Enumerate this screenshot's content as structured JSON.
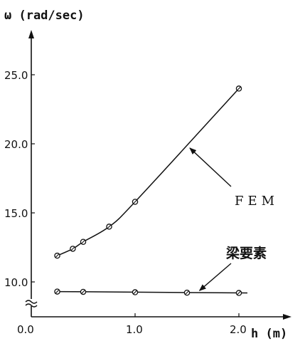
{
  "chart_data": {
    "type": "line",
    "title": "",
    "xlabel": "h (m)",
    "ylabel": "ω (rad/sec)",
    "xlim": [
      0.0,
      2.2
    ],
    "ylim": [
      8.5,
      27.0
    ],
    "x_ticks": [
      "0.0",
      "1.0",
      "2.0"
    ],
    "y_ticks": [
      "10.0",
      "15.0",
      "20.0",
      "25.0"
    ],
    "y_axis_break": true,
    "grid": false,
    "series": [
      {
        "name": "FEM",
        "marker": "circle-slash",
        "x": [
          0.25,
          0.4,
          0.5,
          0.75,
          1.0,
          2.0
        ],
        "y": [
          11.9,
          12.4,
          12.9,
          14.0,
          15.8,
          24.0
        ]
      },
      {
        "name": "梁要素",
        "marker": "circle-slash",
        "x": [
          0.25,
          0.5,
          1.0,
          1.5,
          2.0
        ],
        "y": [
          9.3,
          9.28,
          9.25,
          9.22,
          9.2
        ]
      }
    ],
    "annotations": [
      {
        "text": "FEM",
        "series": 0,
        "points_to_x": 1.5
      },
      {
        "text": "梁要素",
        "series": 1,
        "points_to_x": 1.6
      }
    ]
  }
}
